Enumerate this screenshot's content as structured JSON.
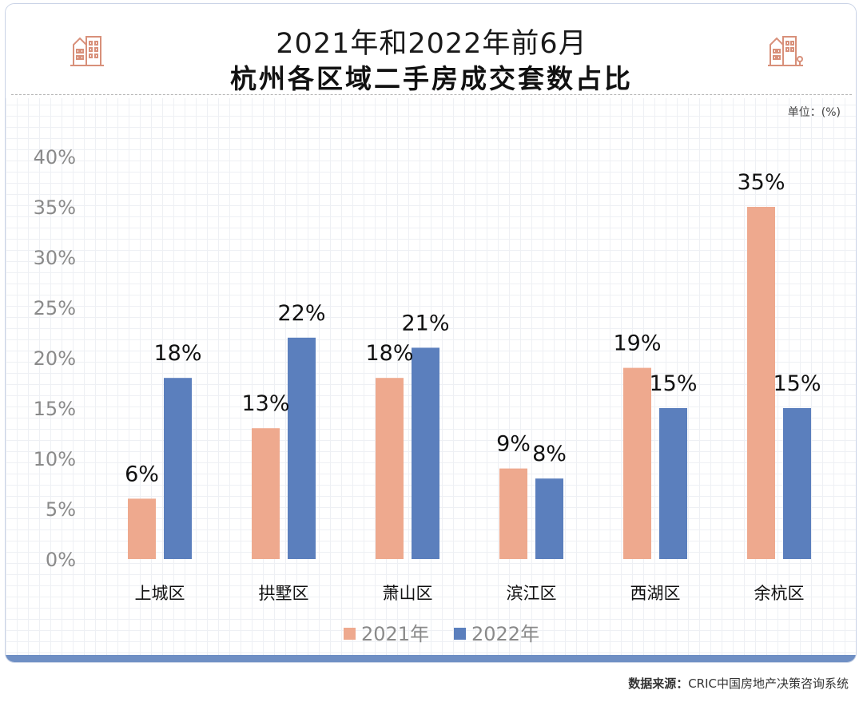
{
  "header": {
    "title_line1": "2021年和2022年前6月",
    "title_line2": "杭州各区域二手房成交套数占比",
    "unit": "单位：(%)"
  },
  "footer": {
    "source_label": "数据来源：",
    "source_text": "CRIC中国房地产决策咨询系统"
  },
  "icons": {
    "left": "building-icon",
    "right": "building-icon"
  },
  "colors": {
    "series_2021": "#eea98e",
    "series_2022": "#5b7fbd",
    "accent_icon": "#d8907a",
    "bottom_bar": "#6f8fc4"
  },
  "chart_data": {
    "type": "bar",
    "title": "2021年和2022年前6月杭州各区域二手房成交套数占比",
    "unit": "%",
    "categories": [
      "上城区",
      "拱墅区",
      "萧山区",
      "滨江区",
      "西湖区",
      "余杭区"
    ],
    "series": [
      {
        "name": "2021年",
        "values": [
          6,
          13,
          18,
          9,
          19,
          35
        ],
        "labels": [
          "6%",
          "13%",
          "18%",
          "9%",
          "19%",
          "35%"
        ]
      },
      {
        "name": "2022年",
        "values": [
          18,
          22,
          21,
          8,
          15,
          15
        ],
        "labels": [
          "18%",
          "22%",
          "21%",
          "8%",
          "15%",
          "15%"
        ]
      }
    ],
    "ylim": [
      0,
      40
    ],
    "yticks": [
      0,
      5,
      10,
      15,
      20,
      25,
      30,
      35,
      40
    ],
    "ytick_labels": [
      "0%",
      "5%",
      "10%",
      "15%",
      "20%",
      "25%",
      "30%",
      "35%",
      "40%"
    ],
    "legend_position": "bottom-center",
    "grid": false
  }
}
